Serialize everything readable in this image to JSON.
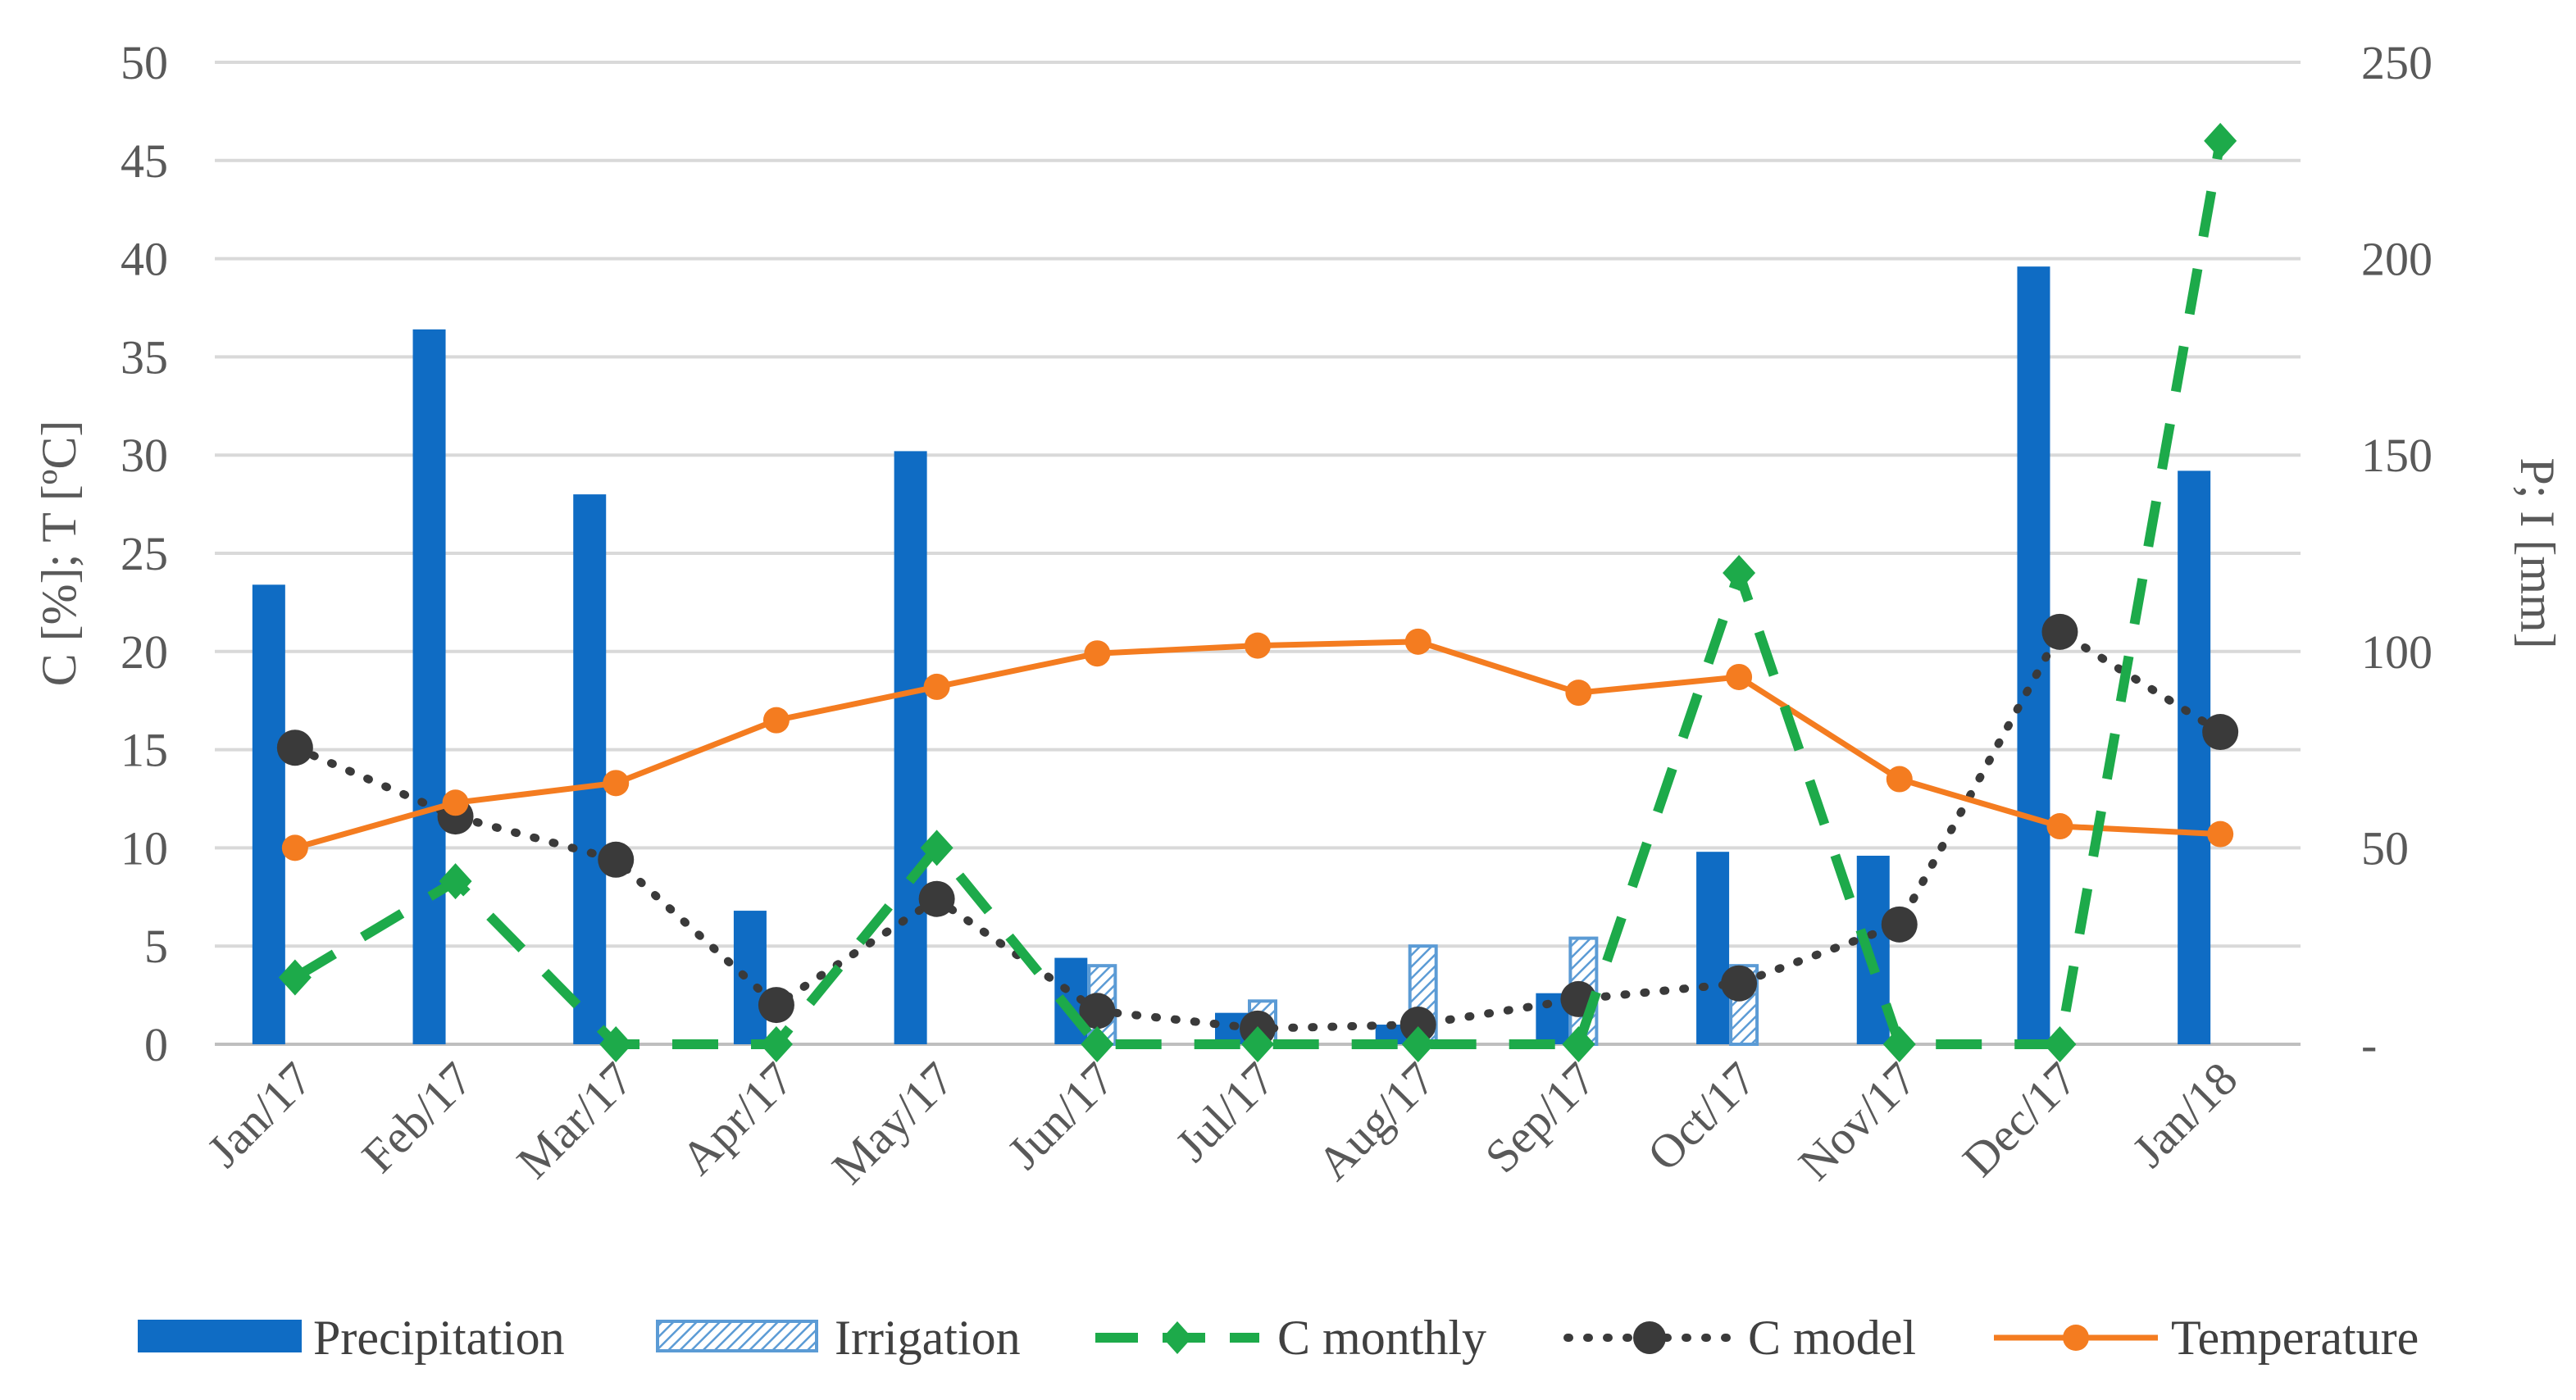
{
  "chart_data": {
    "type": "bar",
    "categories": [
      "Jan/17",
      "Feb/17",
      "Mar/17",
      "Apr/17",
      "May/17",
      "Jun/17",
      "Jul/17",
      "Aug/17",
      "Sep/17",
      "Oct/17",
      "Nov/17",
      "Dec/17",
      "Jan/18"
    ],
    "left_axis": {
      "label": "C [%]; T [ºC]",
      "range": [
        0,
        50
      ],
      "ticks": [
        "0",
        "5",
        "10",
        "15",
        "20",
        "25",
        "30",
        "35",
        "40",
        "45",
        "50"
      ]
    },
    "right_axis": {
      "label": "P; I [mm]",
      "range": [
        0,
        250
      ],
      "ticks": [
        "-",
        "50",
        "100",
        "150",
        "200",
        "250"
      ]
    },
    "grid": true,
    "legend_position": "bottom",
    "series": [
      {
        "name": "Precipitation",
        "type": "bar",
        "axis": "right",
        "color": "#0f6cc4",
        "values": [
          117,
          182,
          140,
          34,
          151,
          22,
          8,
          5,
          13,
          49,
          48,
          198,
          146
        ]
      },
      {
        "name": "Irrigation",
        "type": "bar-hatched",
        "axis": "right",
        "color": "#5b9bd5",
        "values": [
          null,
          null,
          null,
          null,
          null,
          20,
          11,
          25,
          27,
          20,
          null,
          null,
          null
        ]
      },
      {
        "name": "C monthly",
        "type": "line-dashed",
        "axis": "left",
        "color": "#1daa4a",
        "values": [
          3.4,
          8.3,
          0,
          0,
          10,
          0,
          0,
          0,
          0,
          24,
          0,
          0,
          46
        ]
      },
      {
        "name": "C model",
        "type": "line-dotted",
        "axis": "left",
        "color": "#3a3a3a",
        "values": [
          15.1,
          11.6,
          9.4,
          2.0,
          7.4,
          1.7,
          0.8,
          1.0,
          2.3,
          3.1,
          6.1,
          21.0,
          15.9
        ]
      },
      {
        "name": "Temperature",
        "type": "line",
        "axis": "left",
        "color": "#f47c20",
        "values": [
          10.0,
          12.3,
          13.3,
          16.5,
          18.2,
          19.9,
          20.3,
          20.5,
          17.9,
          18.7,
          13.5,
          11.1,
          10.7
        ]
      }
    ]
  }
}
